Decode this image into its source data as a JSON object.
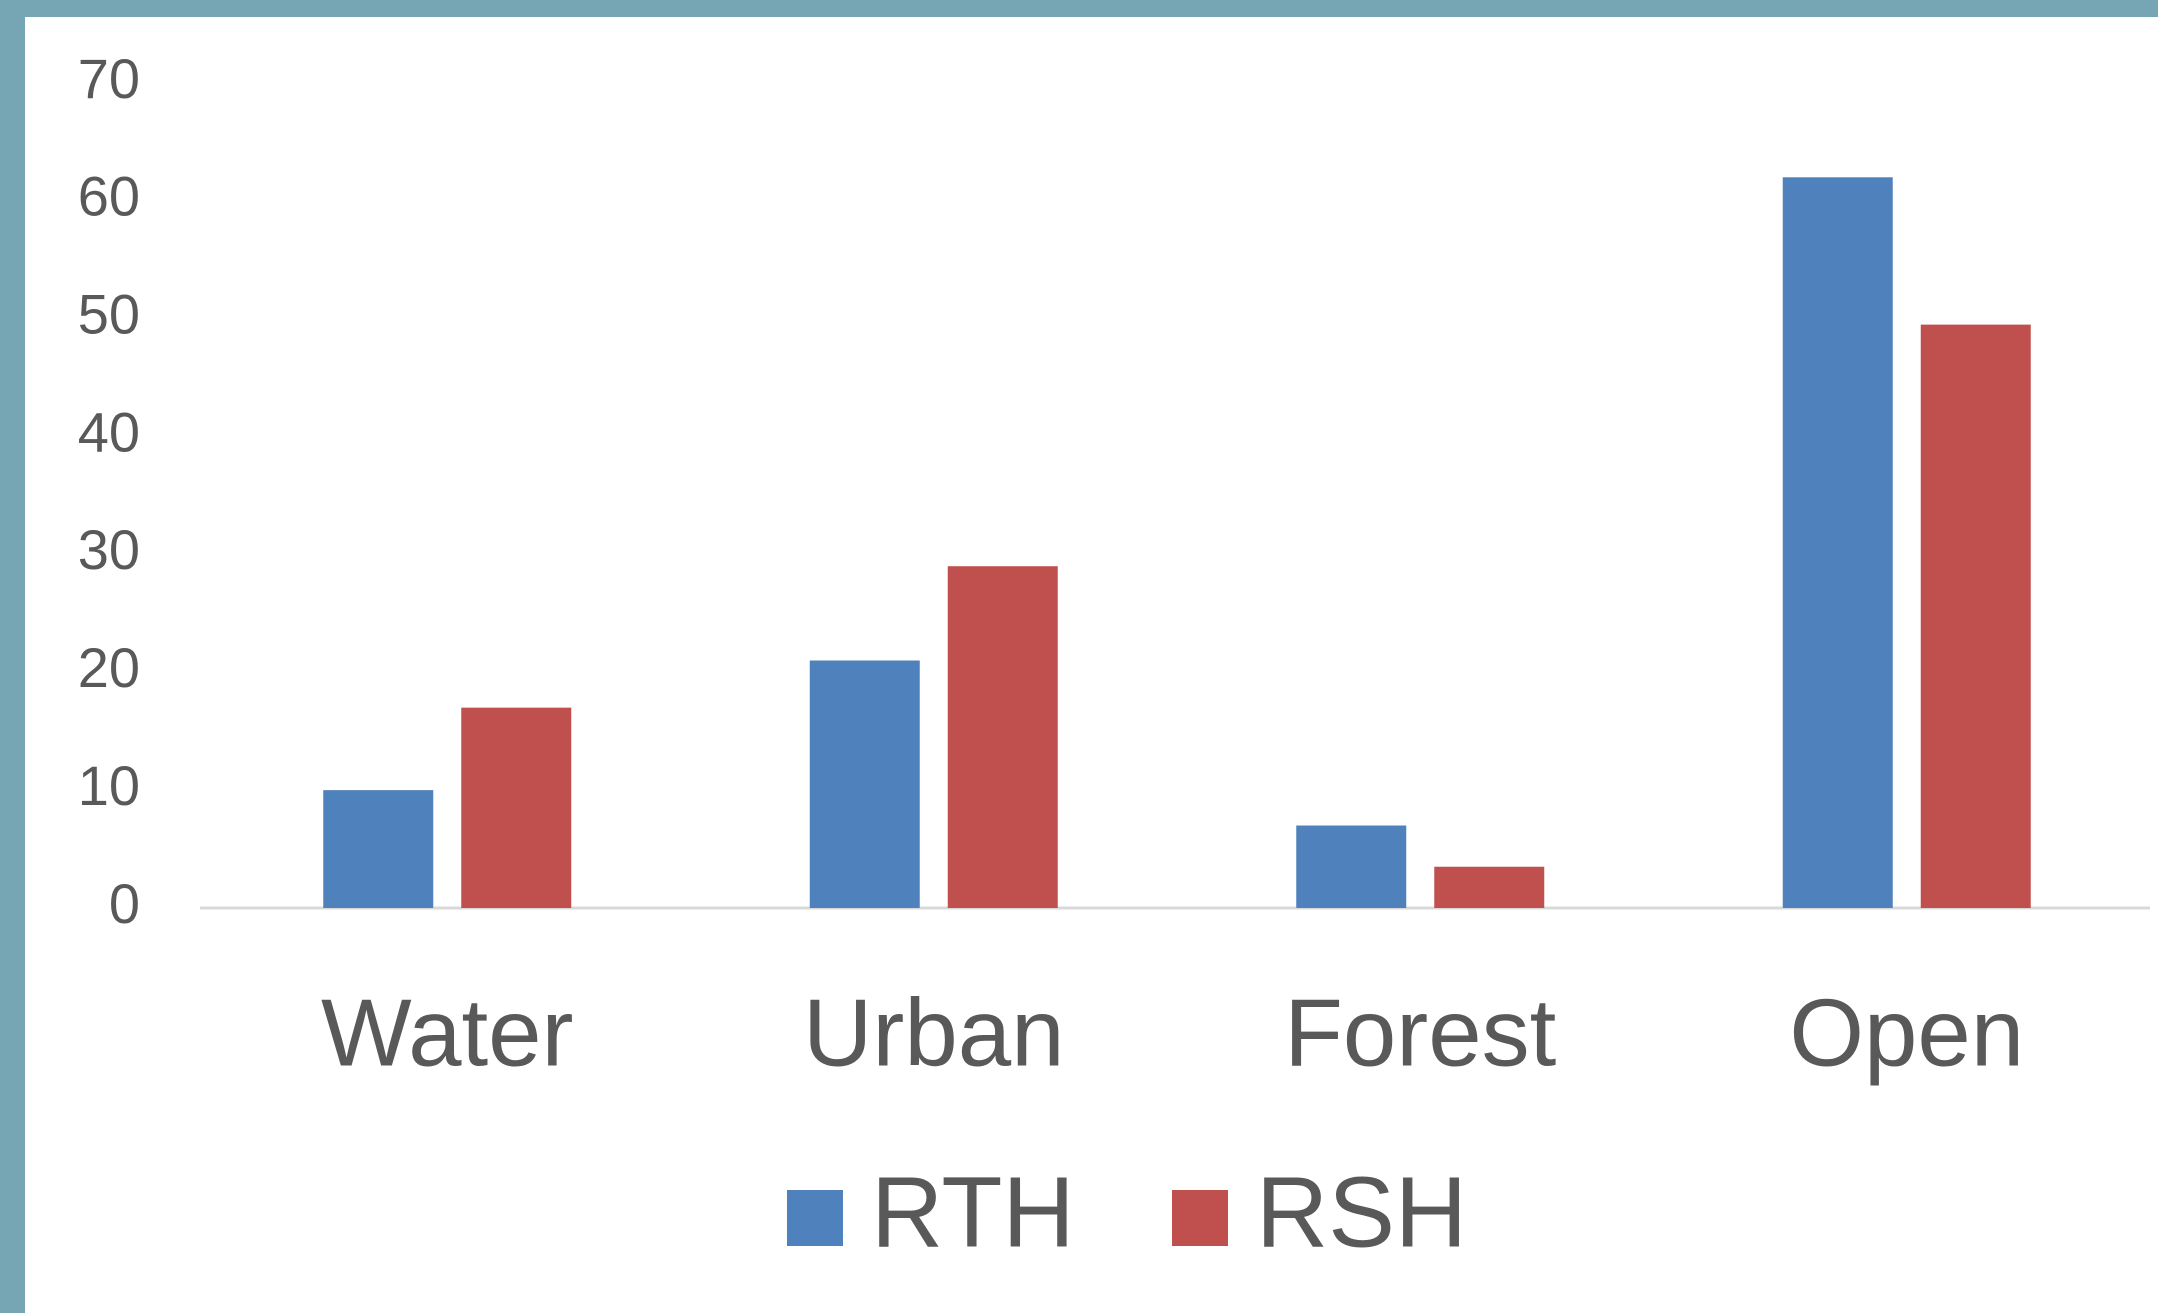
{
  "chart_data": {
    "type": "bar",
    "categories": [
      "Water",
      "Urban",
      "Forest",
      "Open"
    ],
    "series": [
      {
        "name": "RTH",
        "color": "#4f81bd",
        "values": [
          10,
          21,
          7,
          62
        ]
      },
      {
        "name": "RSH",
        "color": "#c0504d",
        "values": [
          17,
          29,
          3.5,
          49.5
        ]
      }
    ],
    "ylim": [
      0,
      70
    ],
    "yticks": [
      0,
      10,
      20,
      30,
      40,
      50,
      60,
      70
    ],
    "grid": false,
    "legend": "bottom"
  }
}
